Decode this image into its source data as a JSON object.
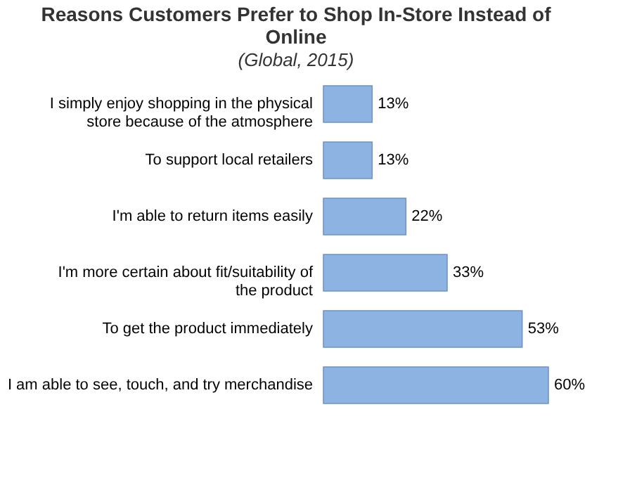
{
  "chart_data": {
    "type": "bar",
    "orientation": "horizontal",
    "title": "Reasons Customers Prefer to Shop In-Store Instead of Online",
    "subtitle": "(Global, 2015)",
    "categories": [
      "I simply enjoy shopping in the physical store because of the atmosphere",
      "To support local retailers",
      "I'm able to return items easily",
      "I'm more certain about fit/suitability of the product",
      "To get the product immediately",
      "I am able to see, touch, and try merchandise"
    ],
    "values": [
      13,
      13,
      22,
      33,
      53,
      60
    ],
    "value_labels": [
      "13%",
      "13%",
      "22%",
      "33%",
      "53%",
      "60%"
    ],
    "color": "#8db3e2",
    "grid": false
  }
}
